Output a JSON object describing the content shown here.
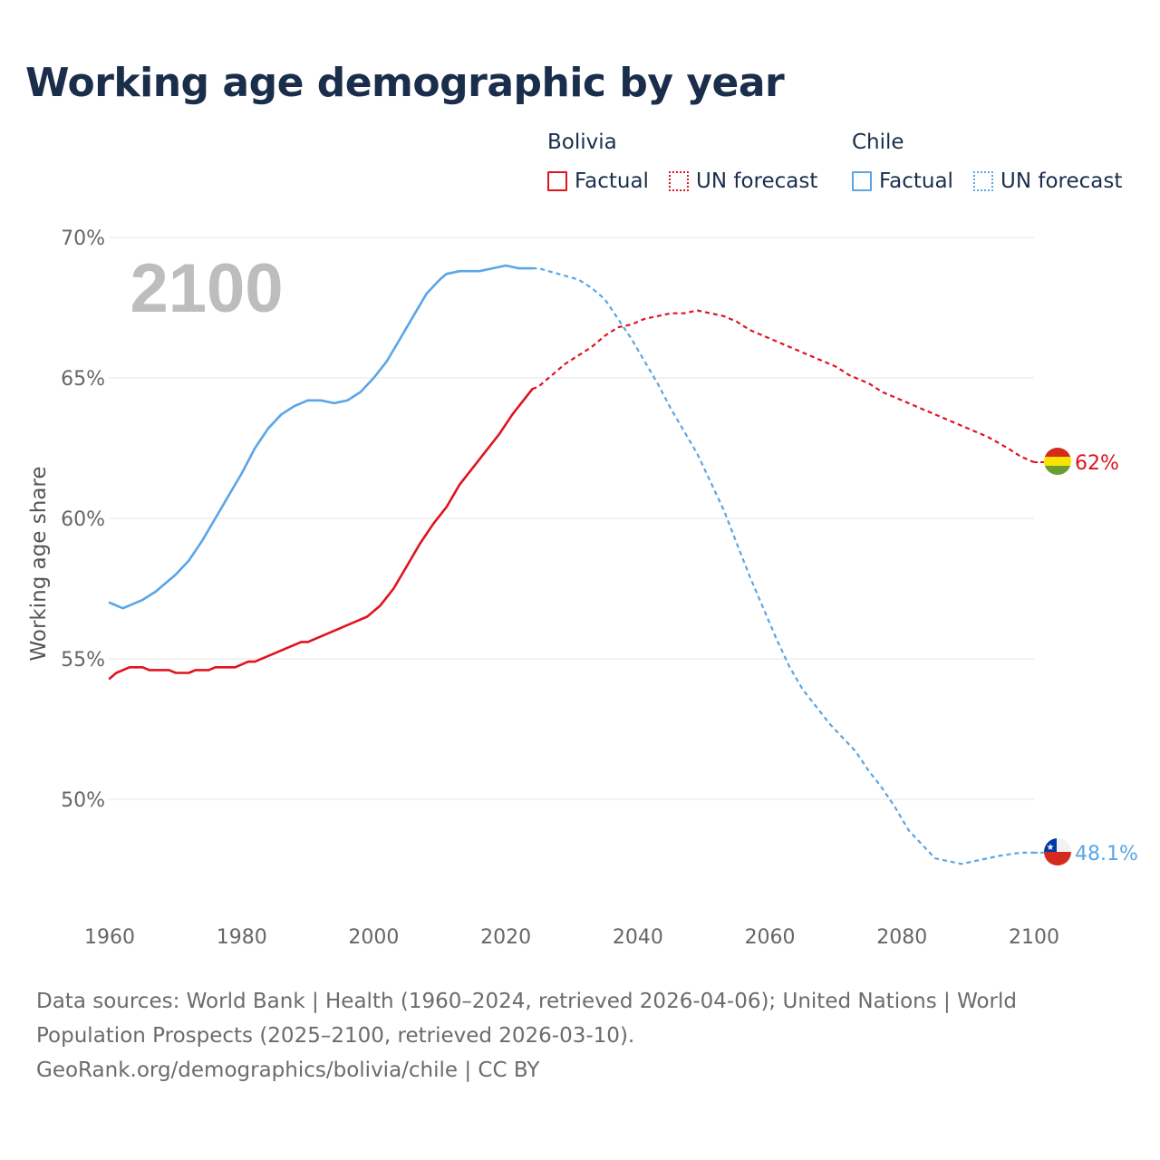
{
  "title": "Working age demographic by year",
  "legend": {
    "groups": [
      {
        "name": "Bolivia",
        "color": "#e0131f",
        "factual_label": "Factual",
        "forecast_label": "UN forecast"
      },
      {
        "name": "Chile",
        "color": "#5aa5e6",
        "factual_label": "Factual",
        "forecast_label": "UN forecast"
      }
    ]
  },
  "chart_data": {
    "type": "line",
    "title": "Working age demographic by year",
    "xlabel": "",
    "ylabel": "Working age share",
    "xlim": [
      1960,
      2100
    ],
    "ylim": [
      46,
      70
    ],
    "x_ticks": [
      1960,
      1980,
      2000,
      2020,
      2040,
      2060,
      2080,
      2100
    ],
    "x_tick_labels": [
      "1960",
      "1980",
      "2000",
      "2020",
      "2040",
      "2060",
      "2080",
      "2100"
    ],
    "y_ticks": [
      50,
      55,
      60,
      65,
      70
    ],
    "y_tick_labels": [
      "50%",
      "55%",
      "60%",
      "65%",
      "70%"
    ],
    "year_watermark": "2100",
    "factual_range": [
      1960,
      2024
    ],
    "forecast_range": [
      2025,
      2100
    ],
    "series": [
      {
        "name": "Bolivia",
        "color": "#e0131f",
        "end_label": "62%",
        "flag": "bolivia",
        "points": [
          [
            1960,
            54.3
          ],
          [
            1961,
            54.5
          ],
          [
            1963,
            54.7
          ],
          [
            1965,
            54.7
          ],
          [
            1966,
            54.6
          ],
          [
            1969,
            54.6
          ],
          [
            1970,
            54.5
          ],
          [
            1972,
            54.5
          ],
          [
            1973,
            54.6
          ],
          [
            1975,
            54.6
          ],
          [
            1976,
            54.7
          ],
          [
            1979,
            54.7
          ],
          [
            1981,
            54.9
          ],
          [
            1982,
            54.9
          ],
          [
            1985,
            55.2
          ],
          [
            1989,
            55.6
          ],
          [
            1990,
            55.6
          ],
          [
            1995,
            56.1
          ],
          [
            1999,
            56.5
          ],
          [
            2001,
            56.9
          ],
          [
            2003,
            57.5
          ],
          [
            2005,
            58.3
          ],
          [
            2007,
            59.1
          ],
          [
            2009,
            59.8
          ],
          [
            2011,
            60.4
          ],
          [
            2013,
            61.2
          ],
          [
            2015,
            61.8
          ],
          [
            2017,
            62.4
          ],
          [
            2019,
            63.0
          ],
          [
            2021,
            63.7
          ],
          [
            2023,
            64.3
          ],
          [
            2024,
            64.6
          ],
          [
            2025,
            64.7
          ],
          [
            2027,
            65.1
          ],
          [
            2029,
            65.5
          ],
          [
            2031,
            65.8
          ],
          [
            2033,
            66.1
          ],
          [
            2035,
            66.5
          ],
          [
            2037,
            66.8
          ],
          [
            2039,
            66.9
          ],
          [
            2041,
            67.1
          ],
          [
            2043,
            67.2
          ],
          [
            2045,
            67.3
          ],
          [
            2047,
            67.3
          ],
          [
            2049,
            67.4
          ],
          [
            2051,
            67.3
          ],
          [
            2053,
            67.2
          ],
          [
            2055,
            67.0
          ],
          [
            2057,
            66.7
          ],
          [
            2060,
            66.4
          ],
          [
            2063,
            66.1
          ],
          [
            2065,
            65.9
          ],
          [
            2067,
            65.7
          ],
          [
            2070,
            65.4
          ],
          [
            2072,
            65.1
          ],
          [
            2075,
            64.8
          ],
          [
            2077,
            64.5
          ],
          [
            2080,
            64.2
          ],
          [
            2083,
            63.9
          ],
          [
            2086,
            63.6
          ],
          [
            2090,
            63.2
          ],
          [
            2093,
            62.9
          ],
          [
            2096,
            62.5
          ],
          [
            2098,
            62.2
          ],
          [
            2100,
            62.0
          ]
        ]
      },
      {
        "name": "Chile",
        "color": "#5aa5e6",
        "end_label": "48.1%",
        "flag": "chile",
        "points": [
          [
            1960,
            57.0
          ],
          [
            1962,
            56.8
          ],
          [
            1965,
            57.1
          ],
          [
            1967,
            57.4
          ],
          [
            1968,
            57.6
          ],
          [
            1970,
            58.0
          ],
          [
            1972,
            58.5
          ],
          [
            1974,
            59.2
          ],
          [
            1976,
            60.0
          ],
          [
            1978,
            60.8
          ],
          [
            1980,
            61.6
          ],
          [
            1982,
            62.5
          ],
          [
            1984,
            63.2
          ],
          [
            1986,
            63.7
          ],
          [
            1988,
            64.0
          ],
          [
            1990,
            64.2
          ],
          [
            1992,
            64.2
          ],
          [
            1994,
            64.1
          ],
          [
            1996,
            64.2
          ],
          [
            1998,
            64.5
          ],
          [
            2000,
            65.0
          ],
          [
            2002,
            65.6
          ],
          [
            2004,
            66.4
          ],
          [
            2006,
            67.2
          ],
          [
            2008,
            68.0
          ],
          [
            2010,
            68.5
          ],
          [
            2011,
            68.7
          ],
          [
            2013,
            68.8
          ],
          [
            2016,
            68.8
          ],
          [
            2018,
            68.9
          ],
          [
            2020,
            69.0
          ],
          [
            2022,
            68.9
          ],
          [
            2024,
            68.9
          ],
          [
            2025,
            68.9
          ],
          [
            2028,
            68.7
          ],
          [
            2031,
            68.5
          ],
          [
            2033,
            68.2
          ],
          [
            2035,
            67.8
          ],
          [
            2037,
            67.1
          ],
          [
            2039,
            66.4
          ],
          [
            2041,
            65.6
          ],
          [
            2043,
            64.8
          ],
          [
            2045,
            63.9
          ],
          [
            2047,
            63.1
          ],
          [
            2049,
            62.3
          ],
          [
            2051,
            61.3
          ],
          [
            2053,
            60.3
          ],
          [
            2055,
            59.1
          ],
          [
            2057,
            57.9
          ],
          [
            2059,
            56.8
          ],
          [
            2061,
            55.7
          ],
          [
            2063,
            54.7
          ],
          [
            2065,
            53.9
          ],
          [
            2067,
            53.3
          ],
          [
            2069,
            52.7
          ],
          [
            2071,
            52.2
          ],
          [
            2073,
            51.7
          ],
          [
            2075,
            51.0
          ],
          [
            2077,
            50.4
          ],
          [
            2079,
            49.7
          ],
          [
            2081,
            48.9
          ],
          [
            2083,
            48.4
          ],
          [
            2085,
            47.9
          ],
          [
            2087,
            47.8
          ],
          [
            2089,
            47.7
          ],
          [
            2091,
            47.8
          ],
          [
            2093,
            47.9
          ],
          [
            2095,
            48.0
          ],
          [
            2098,
            48.1
          ],
          [
            2100,
            48.1
          ]
        ]
      }
    ]
  },
  "footer": {
    "line1": "Data sources: World Bank | Health (1960–2024, retrieved 2026-04-06); United Nations | World",
    "line2": "Population Prospects (2025–2100, retrieved 2026-03-10).",
    "line3": "GeoRank.org/demographics/bolivia/chile | CC BY"
  }
}
